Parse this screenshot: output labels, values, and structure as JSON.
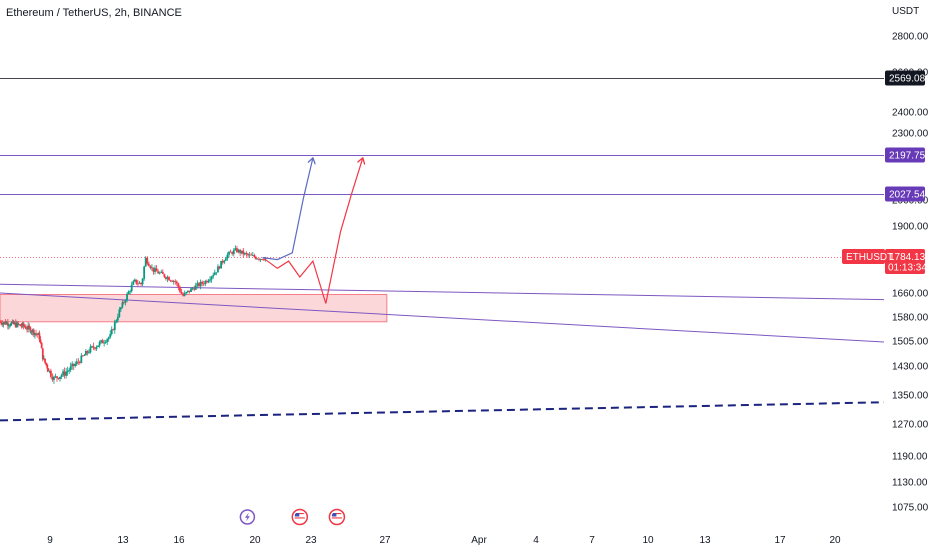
{
  "header": {
    "title": "Ethereum / TetherUS, 2h, BINANCE"
  },
  "price_axis": {
    "currency": "USDT",
    "ticks": [
      {
        "value": 2800,
        "label": "2800.00"
      },
      {
        "value": 2600,
        "label": "2600.00"
      },
      {
        "value": 2400,
        "label": "2400.00"
      },
      {
        "value": 2300,
        "label": "2300.00"
      },
      {
        "value": 2000,
        "label": "2000.00"
      },
      {
        "value": 1900,
        "label": "1900.00"
      },
      {
        "value": 1660,
        "label": "1660.00"
      },
      {
        "value": 1580,
        "label": "1580.00"
      },
      {
        "value": 1505,
        "label": "1505.00"
      },
      {
        "value": 1430,
        "label": "1430.00"
      },
      {
        "value": 1350,
        "label": "1350.00"
      },
      {
        "value": 1270,
        "label": "1270.00"
      },
      {
        "value": 1190,
        "label": "1190.00"
      },
      {
        "value": 1130,
        "label": "1130.00"
      },
      {
        "value": 1075,
        "label": "1075.00"
      }
    ]
  },
  "time_axis": {
    "ticks": [
      {
        "day": 9,
        "label": "9"
      },
      {
        "day": 13,
        "label": "13"
      },
      {
        "day": 16,
        "label": "16"
      },
      {
        "day": 20,
        "label": "20"
      },
      {
        "day": 23,
        "label": "23"
      },
      {
        "day": 27,
        "label": "27"
      },
      {
        "day": 32,
        "label": "Apr"
      },
      {
        "day": 35,
        "label": "4"
      },
      {
        "day": 38,
        "label": "7"
      },
      {
        "day": 41,
        "label": "10"
      },
      {
        "day": 44,
        "label": "13"
      },
      {
        "day": 48,
        "label": "17"
      },
      {
        "day": 51,
        "label": "20"
      }
    ]
  },
  "price_tags": [
    {
      "price": 2569.08,
      "label": "2569.08",
      "color": "#131722",
      "line_color": "#434651",
      "line_style": "solid"
    },
    {
      "price": 2197.75,
      "label": "2197.75",
      "color": "#673ab7",
      "line_color": "#7e57c2",
      "line_style": "solid"
    },
    {
      "price": 2027.54,
      "label": "2027.54",
      "color": "#673ab7",
      "line_color": "#7e57c2",
      "line_style": "solid"
    }
  ],
  "current_price": {
    "symbol": "ETHUSDT",
    "price": 1784.13,
    "label": "1784.13",
    "countdown": "01:13:34",
    "color": "#f23645"
  },
  "events": [
    {
      "day": 19.6,
      "type": "lightning",
      "color": "#7e57c2"
    },
    {
      "day": 22.4,
      "type": "flag-us",
      "color": "#f23645"
    },
    {
      "day": 24.4,
      "type": "flag-us",
      "color": "#f23645"
    }
  ],
  "chart_data": {
    "type": "candlestick",
    "symbol": "ETHUSDT",
    "interval": "2h",
    "exchange": "BINANCE",
    "x_unit": "day",
    "xlim": [
      5.3,
      54.0
    ],
    "ylim": [
      1040,
      2950
    ],
    "grid": false,
    "series": [
      {
        "day": 5.3,
        "price": 1565
      },
      {
        "day": 6.0,
        "price": 1560
      },
      {
        "day": 7.0,
        "price": 1552
      },
      {
        "day": 7.6,
        "price": 1540
      },
      {
        "day": 8.2,
        "price": 1520
      },
      {
        "day": 8.5,
        "price": 1450
      },
      {
        "day": 8.9,
        "price": 1420
      },
      {
        "day": 9.2,
        "price": 1395
      },
      {
        "day": 9.8,
        "price": 1410
      },
      {
        "day": 10.5,
        "price": 1440
      },
      {
        "day": 11.2,
        "price": 1480
      },
      {
        "day": 11.8,
        "price": 1500
      },
      {
        "day": 12.3,
        "price": 1520
      },
      {
        "day": 12.8,
        "price": 1600
      },
      {
        "day": 13.2,
        "price": 1650
      },
      {
        "day": 13.6,
        "price": 1700
      },
      {
        "day": 14.0,
        "price": 1690
      },
      {
        "day": 14.2,
        "price": 1780
      },
      {
        "day": 14.6,
        "price": 1740
      },
      {
        "day": 15.2,
        "price": 1720
      },
      {
        "day": 15.8,
        "price": 1700
      },
      {
        "day": 16.2,
        "price": 1650
      },
      {
        "day": 16.8,
        "price": 1680
      },
      {
        "day": 17.4,
        "price": 1700
      },
      {
        "day": 18.0,
        "price": 1740
      },
      {
        "day": 18.5,
        "price": 1790
      },
      {
        "day": 19.0,
        "price": 1810
      },
      {
        "day": 19.6,
        "price": 1790
      },
      {
        "day": 20.3,
        "price": 1780
      },
      {
        "day": 20.6,
        "price": 1784.13
      }
    ],
    "zone": {
      "day_start": 5.3,
      "day_end": 27.1,
      "price_low": 1565,
      "price_high": 1655,
      "color": "#f23645"
    },
    "trendlines": [
      {
        "points": [
          [
            5.3,
            1690
          ],
          [
            54.0,
            1638
          ]
        ],
        "color": "#7e57c2",
        "style": "solid"
      },
      {
        "points": [
          [
            5.3,
            1660
          ],
          [
            54.0,
            1502
          ]
        ],
        "color": "#7e57c2",
        "style": "solid"
      },
      {
        "points": [
          [
            5.3,
            1280
          ],
          [
            54.0,
            1330
          ]
        ],
        "color": "#1a237e",
        "style": "dashed"
      }
    ],
    "projections": [
      {
        "points": [
          [
            20.4,
            1782
          ],
          [
            21.2,
            1775
          ],
          [
            22.0,
            1800
          ],
          [
            22.6,
            2010
          ],
          [
            23.1,
            2185
          ]
        ],
        "color": "#5c6bc0",
        "arrow": true
      },
      {
        "points": [
          [
            20.5,
            1778
          ],
          [
            21.2,
            1745
          ],
          [
            21.8,
            1770
          ],
          [
            22.4,
            1715
          ],
          [
            23.1,
            1770
          ],
          [
            23.8,
            1625
          ],
          [
            24.6,
            1880
          ],
          [
            25.2,
            2030
          ],
          [
            25.8,
            2185
          ]
        ],
        "color": "#f23645",
        "arrow": true
      }
    ]
  }
}
